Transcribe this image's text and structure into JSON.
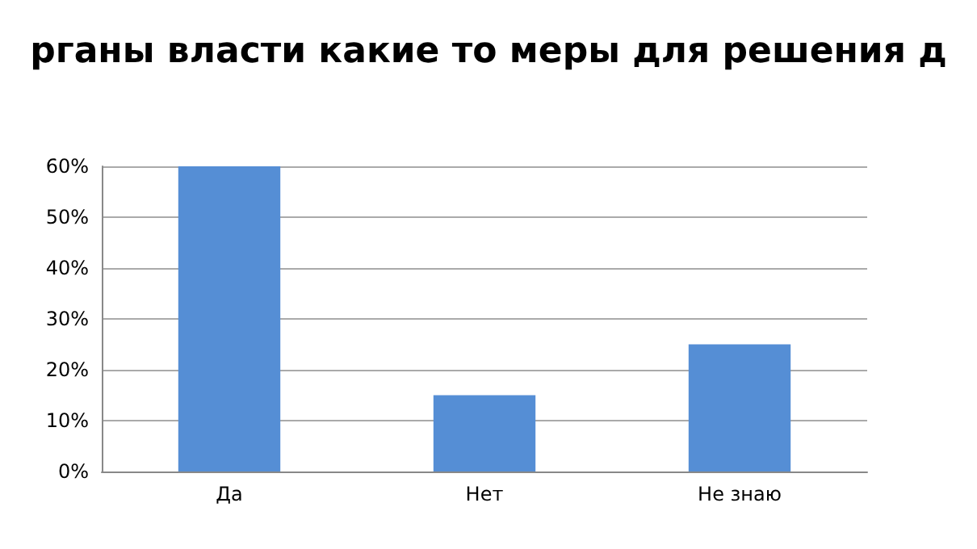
{
  "chart_data": {
    "type": "bar",
    "title": "рганы власти какие то меры для решения д",
    "categories": [
      "Да",
      "Нет",
      "Не знаю"
    ],
    "values": [
      60,
      15,
      25
    ],
    "color": "#558ed5",
    "ylim": [
      0,
      60
    ],
    "yticks": [
      {
        "value": 0,
        "label": "0%"
      },
      {
        "value": 10,
        "label": "10%"
      },
      {
        "value": 20,
        "label": "20%"
      },
      {
        "value": 30,
        "label": "30%"
      },
      {
        "value": 40,
        "label": "40%"
      },
      {
        "value": 50,
        "label": "50%"
      },
      {
        "value": 60,
        "label": "60%"
      }
    ],
    "grid": "y"
  }
}
